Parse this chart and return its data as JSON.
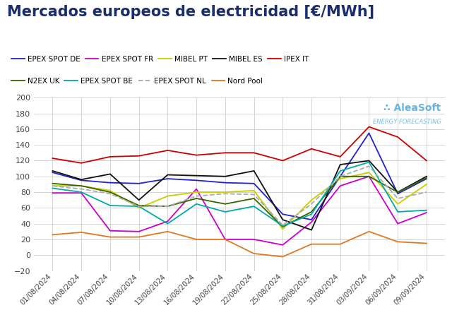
{
  "title": "Mercados europeos de electricidad [€/MWh]",
  "title_color": "#1a2e6e",
  "title_fontsize": 15,
  "background_color": "#ffffff",
  "grid_color": "#cccccc",
  "dates": [
    "01/08/2024",
    "04/08/2024",
    "07/08/2024",
    "10/08/2024",
    "13/08/2024",
    "16/08/2024",
    "19/08/2024",
    "22/08/2024",
    "25/08/2024",
    "28/08/2024",
    "31/08/2024",
    "03/09/2024",
    "06/09/2024",
    "09/09/2024"
  ],
  "series": [
    {
      "label": "EPEX SPOT DE",
      "color": "#2222cc",
      "data": [
        105,
        95,
        92,
        91,
        97,
        95,
        92,
        91,
        52,
        45,
        100,
        155,
        78,
        97
      ]
    },
    {
      "label": "EPEX SPOT FR",
      "color": "#cc00cc",
      "data": [
        79,
        79,
        31,
        30,
        43,
        84,
        20,
        20,
        13,
        42,
        88,
        100,
        40,
        54
      ]
    },
    {
      "label": "MIBEL PT",
      "color": "#cccc00",
      "data": [
        88,
        88,
        82,
        60,
        75,
        80,
        80,
        82,
        33,
        70,
        97,
        105,
        65,
        90
      ]
    },
    {
      "label": "MIBEL ES",
      "color": "#111111",
      "data": [
        107,
        96,
        103,
        70,
        102,
        101,
        100,
        107,
        45,
        32,
        115,
        120,
        80,
        100
      ]
    },
    {
      "label": "IPEX IT",
      "color": "#cc0000",
      "data": [
        123,
        117,
        125,
        126,
        133,
        127,
        130,
        130,
        120,
        135,
        125,
        163,
        150,
        120
      ]
    },
    {
      "label": "N2EX UK",
      "color": "#336600",
      "data": [
        91,
        88,
        80,
        63,
        62,
        72,
        65,
        72,
        36,
        55,
        100,
        100,
        80,
        98
      ]
    },
    {
      "label": "EPEX SPOT BE",
      "color": "#00aaaa",
      "data": [
        85,
        80,
        63,
        62,
        40,
        65,
        55,
        62,
        37,
        52,
        107,
        118,
        55,
        57
      ]
    },
    {
      "label": "EPEX SPOT NL",
      "color": "#aaaaaa",
      "dash": "--",
      "data": [
        88,
        84,
        78,
        62,
        62,
        75,
        78,
        77,
        38,
        65,
        100,
        113,
        72,
        80
      ]
    },
    {
      "label": "Nord Pool",
      "color": "#e07820",
      "data": [
        26,
        29,
        23,
        23,
        30,
        20,
        20,
        2,
        -2,
        14,
        14,
        30,
        17,
        15
      ]
    }
  ],
  "ylim": [
    -20,
    200
  ],
  "yticks": [
    -20,
    0,
    20,
    40,
    60,
    80,
    100,
    120,
    140,
    160,
    180,
    200
  ],
  "legend_row1": [
    "EPEX SPOT DE",
    "EPEX SPOT FR",
    "MIBEL PT",
    "MIBEL ES",
    "IPEX IT"
  ],
  "legend_row2": [
    "N2EX UK",
    "EPEX SPOT BE",
    "EPEX SPOT NL",
    "Nord Pool"
  ]
}
